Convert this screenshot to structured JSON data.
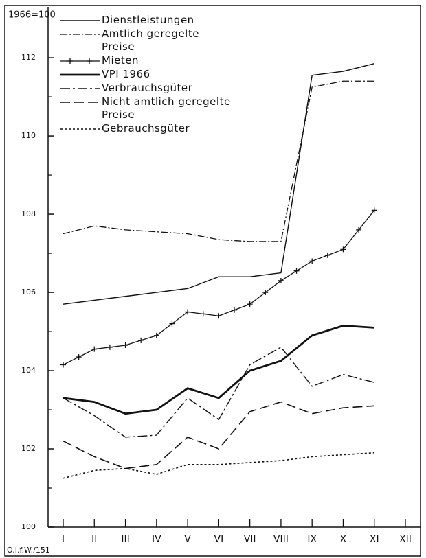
{
  "chart_data": {
    "type": "line",
    "note": "1966=100",
    "source": "Ö.I.f.W./151",
    "categories": [
      "I",
      "II",
      "III",
      "IV",
      "V",
      "VI",
      "VII",
      "VIII",
      "IX",
      "X",
      "XI",
      "XII"
    ],
    "ylim": [
      100,
      113.3
    ],
    "yticks": [
      100,
      102,
      104,
      106,
      108,
      110,
      112
    ],
    "yminorticks": [
      101,
      103,
      105,
      107,
      109,
      111
    ],
    "series": [
      {
        "name": "Dienstleistungen",
        "color": "#111111",
        "style": "solid",
        "values": [
          105.7,
          105.8,
          105.9,
          106.0,
          106.1,
          106.4,
          106.4,
          106.5,
          111.55,
          111.65,
          111.85,
          null
        ]
      },
      {
        "name": "Amtlich geregelte Preise",
        "color": "#111111",
        "style": "dashdot",
        "values": [
          107.5,
          107.7,
          107.6,
          107.55,
          107.5,
          107.35,
          107.3,
          107.3,
          111.25,
          111.4,
          111.4,
          null
        ]
      },
      {
        "name": "Mieten",
        "color": "#111111",
        "style": "cross",
        "values": [
          104.15,
          104.55,
          104.65,
          104.9,
          105.5,
          105.4,
          105.7,
          106.3,
          106.8,
          107.1,
          108.1,
          null
        ]
      },
      {
        "name": "VPI 1966",
        "color": "#111111",
        "style": "thick",
        "values": [
          103.3,
          103.2,
          102.9,
          103.0,
          103.55,
          103.3,
          104.0,
          104.25,
          104.9,
          105.15,
          105.1,
          null
        ]
      },
      {
        "name": "Verbrauchsgüter",
        "color": "#111111",
        "style": "longdashdot",
        "values": [
          103.3,
          102.85,
          102.3,
          102.35,
          103.3,
          102.75,
          104.15,
          104.6,
          103.6,
          103.9,
          103.7,
          null
        ]
      },
      {
        "name": "Nicht amtlich geregelte Preise",
        "color": "#111111",
        "style": "longdash",
        "values": [
          102.2,
          101.8,
          101.5,
          101.6,
          102.3,
          102.0,
          102.95,
          103.2,
          102.9,
          103.05,
          103.1,
          null
        ]
      },
      {
        "name": "Gebrauchsgüter",
        "color": "#111111",
        "style": "dotted",
        "values": [
          101.25,
          101.45,
          101.5,
          101.35,
          101.6,
          101.6,
          101.65,
          101.7,
          101.8,
          101.85,
          101.9,
          null
        ]
      }
    ]
  }
}
